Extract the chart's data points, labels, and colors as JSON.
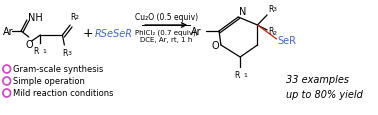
{
  "bg_color": "#ffffff",
  "black": "#000000",
  "blue": "#4466cc",
  "red": "#cc2200",
  "purple": "#cc44cc",
  "bullet_points": [
    "Gram-scale synthesis",
    "Simple operation",
    "Mild reaction conditions"
  ],
  "reagent_line1": "Cu₂O (0.5 equiv)",
  "reagent_line2": "PhICl₂ (0.7 equiv),",
  "reagent_line3": "DCE, Ar, rt, 1 h",
  "examples_text": "33 examples\nup to 80% yield",
  "fig_width": 3.78,
  "fig_height": 1.16,
  "dpi": 100
}
